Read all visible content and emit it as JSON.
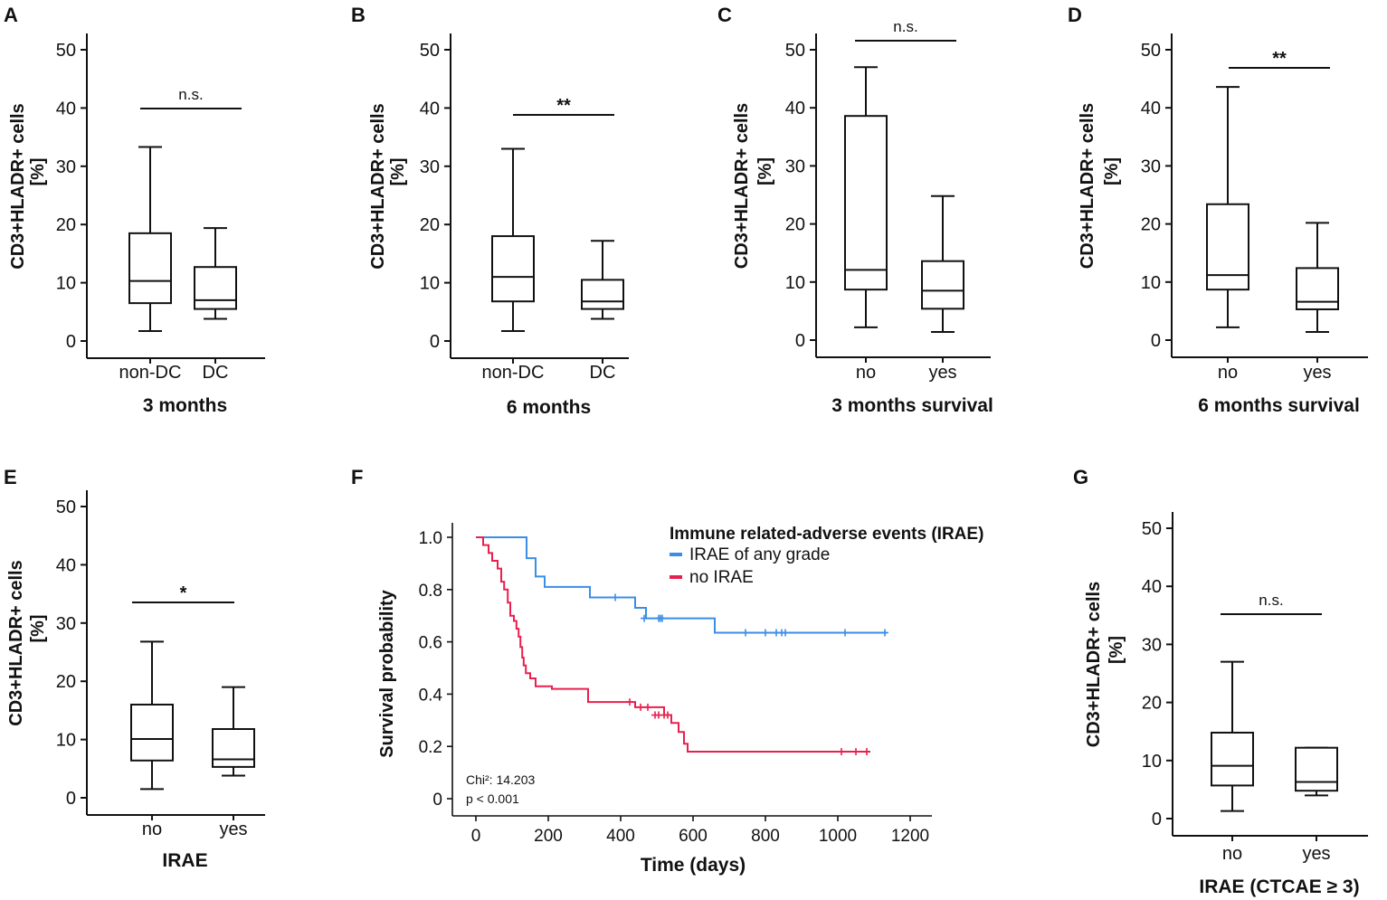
{
  "chart_data": [
    {
      "panel": "A",
      "type": "box",
      "ylabel": [
        "CD3+HLADR+ cells",
        "[%]"
      ],
      "xlabel": "3 months",
      "ylim": [
        0,
        50
      ],
      "yticks": [
        0,
        10,
        20,
        30,
        40,
        50
      ],
      "categories": [
        "non-DC",
        "DC"
      ],
      "boxes": [
        {
          "min": 1.7,
          "q1": 6.5,
          "median": 10.3,
          "q3": 18.5,
          "max": 33.3
        },
        {
          "min": 3.8,
          "q1": 5.5,
          "median": 7.0,
          "q3": 12.7,
          "max": 19.4
        }
      ],
      "significance": "n.s."
    },
    {
      "panel": "B",
      "type": "box",
      "ylabel": [
        "CD3+HLADR+ cells",
        "[%]"
      ],
      "xlabel": "6 months",
      "ylim": [
        0,
        50
      ],
      "yticks": [
        0,
        10,
        20,
        30,
        40,
        50
      ],
      "categories": [
        "non-DC",
        "DC"
      ],
      "boxes": [
        {
          "min": 1.7,
          "q1": 6.8,
          "median": 11.0,
          "q3": 18.0,
          "max": 33.0
        },
        {
          "min": 3.8,
          "q1": 5.5,
          "median": 6.8,
          "q3": 10.5,
          "max": 17.2
        }
      ],
      "significance": "**"
    },
    {
      "panel": "C",
      "type": "box",
      "ylabel": [
        "CD3+HLADR+ cells",
        "[%]"
      ],
      "xlabel": "3 months survival",
      "ylim": [
        0,
        50
      ],
      "yticks": [
        0,
        10,
        20,
        30,
        40,
        50
      ],
      "categories": [
        "no",
        "yes"
      ],
      "boxes": [
        {
          "min": 2.2,
          "q1": 8.7,
          "median": 12.1,
          "q3": 38.6,
          "max": 47.0
        },
        {
          "min": 1.4,
          "q1": 5.4,
          "median": 8.5,
          "q3": 13.6,
          "max": 24.8
        }
      ],
      "significance": "n.s."
    },
    {
      "panel": "D",
      "type": "box",
      "ylabel": [
        "CD3+HLADR+ cells",
        "[%]"
      ],
      "xlabel": "6 months survival",
      "ylim": [
        0,
        50
      ],
      "yticks": [
        0,
        10,
        20,
        30,
        40,
        50
      ],
      "categories": [
        "no",
        "yes"
      ],
      "boxes": [
        {
          "min": 2.2,
          "q1": 8.7,
          "median": 11.2,
          "q3": 23.4,
          "max": 43.6
        },
        {
          "min": 1.4,
          "q1": 5.3,
          "median": 6.6,
          "q3": 12.4,
          "max": 20.2
        }
      ],
      "significance": "**"
    },
    {
      "panel": "E",
      "type": "box",
      "ylabel": [
        "CD3+HLADR+ cells",
        "[%]"
      ],
      "xlabel": "IRAE",
      "ylim": [
        0,
        50
      ],
      "yticks": [
        0,
        10,
        20,
        30,
        40,
        50
      ],
      "categories": [
        "no",
        "yes"
      ],
      "boxes": [
        {
          "min": 1.5,
          "q1": 6.4,
          "median": 10.1,
          "q3": 16.0,
          "max": 26.8
        },
        {
          "min": 3.8,
          "q1": 5.3,
          "median": 6.6,
          "q3": 11.8,
          "max": 19.0
        }
      ],
      "significance": "*"
    },
    {
      "panel": "F",
      "type": "line",
      "title": "",
      "xlabel": "Time (days)",
      "ylabel": "Survival probability",
      "xlim": [
        0,
        1200
      ],
      "ylim": [
        0,
        1.0
      ],
      "xticks": [
        0,
        200,
        400,
        600,
        800,
        1000,
        1200
      ],
      "yticks": [
        "0",
        "0.2",
        "0.4",
        "0.6",
        "0.8",
        "1.0"
      ],
      "legend_title": "Immune related-adverse events (IRAE)",
      "legend_position": "top-right",
      "stat_lines": [
        "Chi²: 14.203",
        "p < 0.001"
      ],
      "series": [
        {
          "name": "IRAE of any grade",
          "color": "#3a8ee6",
          "steps": [
            [
              0,
              1.0
            ],
            [
              140,
              0.92
            ],
            [
              165,
              0.85
            ],
            [
              190,
              0.81
            ],
            [
              315,
              0.77
            ],
            [
              440,
              0.73
            ],
            [
              470,
              0.69
            ],
            [
              660,
              0.635
            ],
            [
              1135,
              0.635
            ]
          ],
          "censored": [
            [
              385,
              0.77
            ],
            [
              465,
              0.69
            ],
            [
              505,
              0.69
            ],
            [
              510,
              0.69
            ],
            [
              515,
              0.69
            ],
            [
              745,
              0.635
            ],
            [
              800,
              0.635
            ],
            [
              830,
              0.635
            ],
            [
              845,
              0.635
            ],
            [
              855,
              0.635
            ],
            [
              1020,
              0.635
            ],
            [
              1130,
              0.635
            ]
          ]
        },
        {
          "name": "no IRAE",
          "color": "#e8204e",
          "steps": [
            [
              0,
              1.0
            ],
            [
              20,
              0.97
            ],
            [
              35,
              0.94
            ],
            [
              45,
              0.91
            ],
            [
              60,
              0.88
            ],
            [
              70,
              0.83
            ],
            [
              78,
              0.8
            ],
            [
              88,
              0.75
            ],
            [
              95,
              0.7
            ],
            [
              105,
              0.68
            ],
            [
              112,
              0.65
            ],
            [
              118,
              0.62
            ],
            [
              123,
              0.58
            ],
            [
              128,
              0.54
            ],
            [
              132,
              0.51
            ],
            [
              138,
              0.48
            ],
            [
              150,
              0.46
            ],
            [
              165,
              0.43
            ],
            [
              210,
              0.42
            ],
            [
              310,
              0.37
            ],
            [
              440,
              0.35
            ],
            [
              520,
              0.32
            ],
            [
              540,
              0.29
            ],
            [
              560,
              0.255
            ],
            [
              575,
              0.21
            ],
            [
              585,
              0.18
            ],
            [
              1090,
              0.18
            ]
          ],
          "censored": [
            [
              425,
              0.37
            ],
            [
              455,
              0.35
            ],
            [
              475,
              0.35
            ],
            [
              495,
              0.32
            ],
            [
              505,
              0.32
            ],
            [
              520,
              0.32
            ],
            [
              530,
              0.32
            ],
            [
              1010,
              0.18
            ],
            [
              1050,
              0.18
            ],
            [
              1080,
              0.18
            ]
          ]
        }
      ]
    },
    {
      "panel": "G",
      "type": "box",
      "ylabel": [
        "CD3+HLADR+ cells",
        "[%]"
      ],
      "xlabel": "IRAE (CTCAE ≥ 3)",
      "ylim": [
        0,
        50
      ],
      "yticks": [
        0,
        10,
        20,
        30,
        40,
        50
      ],
      "categories": [
        "no",
        "yes"
      ],
      "boxes": [
        {
          "min": 1.3,
          "q1": 5.7,
          "median": 9.1,
          "q3": 14.8,
          "max": 27.0
        },
        {
          "min": 4.0,
          "q1": 4.8,
          "median": 6.3,
          "q3": 12.2,
          "max": 12.2
        }
      ],
      "significance": "n.s."
    }
  ]
}
